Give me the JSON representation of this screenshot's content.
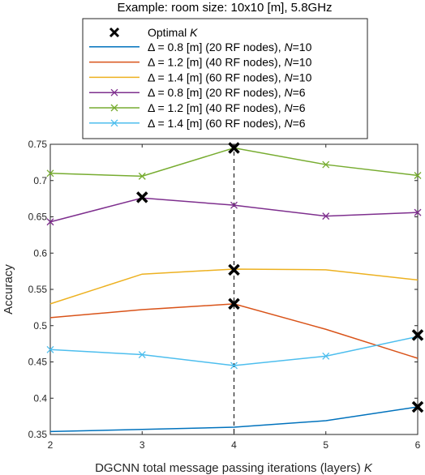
{
  "chart_data": {
    "type": "line",
    "title": "Example: room size: 10x10 [m], 5.8GHz",
    "xlabel": "DGCNN total message passing iterations (layers) K",
    "ylabel": "Accuracy",
    "x": [
      2,
      3,
      4,
      5,
      6
    ],
    "xlim": [
      2,
      6
    ],
    "ylim": [
      0.35,
      0.75
    ],
    "xticks": [
      "2",
      "3",
      "4",
      "5",
      "6"
    ],
    "yticks": [
      "0.35",
      "0.4",
      "0.45",
      "0.5",
      "0.55",
      "0.6",
      "0.65",
      "0.7",
      "0.75"
    ],
    "legend_position": "top-outside",
    "series": [
      {
        "name": "Δ = 0.8 [m] (20 RF nodes), N=10",
        "color": "#0072BD",
        "marker": "none",
        "values": [
          0.354,
          0.357,
          0.36,
          0.369,
          0.388
        ]
      },
      {
        "name": "Δ = 1.2 [m] (40 RF nodes), N=10",
        "color": "#D95319",
        "marker": "none",
        "values": [
          0.511,
          0.522,
          0.53,
          0.495,
          0.455
        ]
      },
      {
        "name": "Δ = 1.4 [m] (60 RF nodes), N=10",
        "color": "#EDB120",
        "marker": "none",
        "values": [
          0.53,
          0.571,
          0.578,
          0.577,
          0.563
        ]
      },
      {
        "name": "Δ = 0.8 [m] (20 RF nodes), N=6",
        "color": "#7E2F8E",
        "marker": "x",
        "values": [
          0.643,
          0.676,
          0.666,
          0.651,
          0.656
        ]
      },
      {
        "name": "Δ = 1.2 [m] (40 RF nodes), N=6",
        "color": "#77AC30",
        "marker": "x",
        "values": [
          0.71,
          0.706,
          0.745,
          0.722,
          0.707
        ]
      },
      {
        "name": "Δ = 1.4 [m] (60 RF nodes), N=6",
        "color": "#4DBEEE",
        "marker": "x",
        "values": [
          0.467,
          0.46,
          0.445,
          0.458,
          0.485
        ]
      }
    ],
    "optimal_marker": {
      "label": "Optimal K",
      "points": [
        {
          "x": 4,
          "y": 0.745
        },
        {
          "x": 3,
          "y": 0.677
        },
        {
          "x": 4,
          "y": 0.577
        },
        {
          "x": 4,
          "y": 0.53
        },
        {
          "x": 6,
          "y": 0.487
        },
        {
          "x": 6,
          "y": 0.388
        }
      ]
    },
    "reference_line": {
      "x": 4,
      "style": "dashed"
    }
  }
}
